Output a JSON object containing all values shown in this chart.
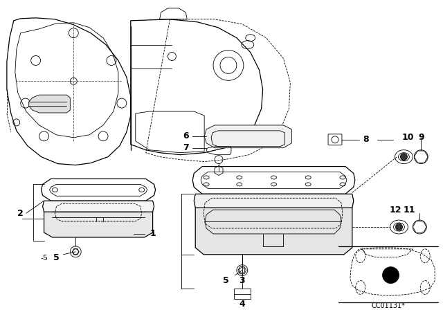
{
  "bg_color": "#ffffff",
  "line_color": "#000000",
  "fig_width": 6.4,
  "fig_height": 4.48,
  "dpi": 100,
  "diagram_code": "CC01131*"
}
